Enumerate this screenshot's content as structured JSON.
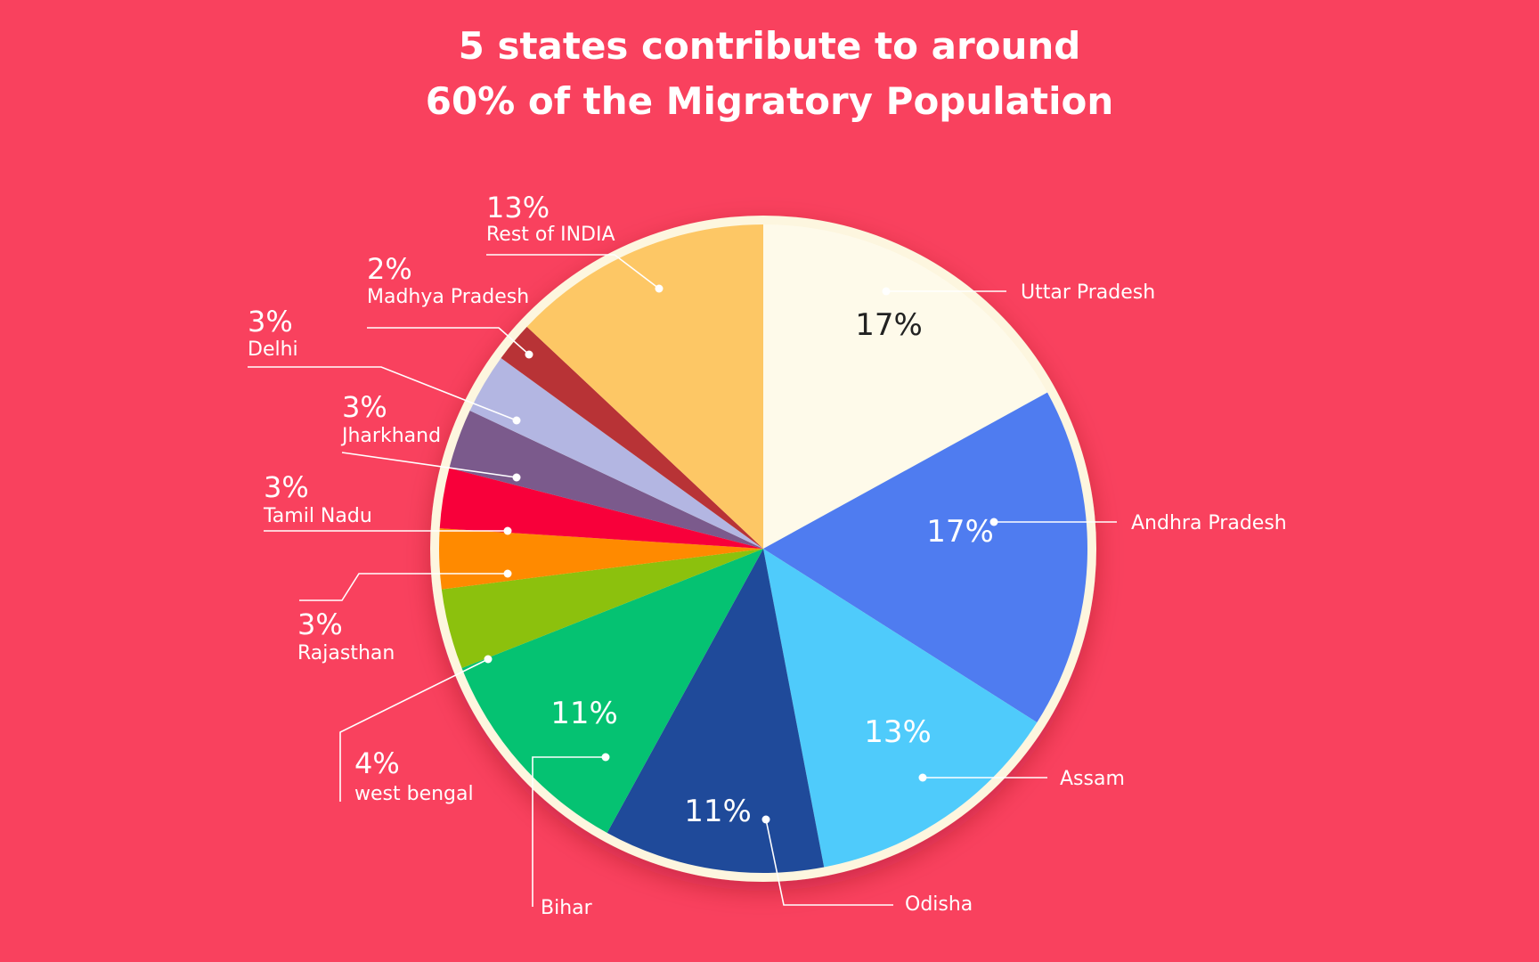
{
  "page": {
    "title_line1": "5 states contribute to around",
    "title_line2": "60% of the Migratory Population",
    "background": "#f9415e"
  },
  "chart_data": {
    "type": "pie",
    "start_angle_deg": 0,
    "direction": "clockwise",
    "slices": [
      {
        "name": "Uttar Pradesh",
        "value": 17,
        "label": "17%",
        "color": "#fefaea"
      },
      {
        "name": "Andhra Pradesh",
        "value": 17,
        "label": "17%",
        "color": "#4f7cf0"
      },
      {
        "name": "Assam",
        "value": 13,
        "label": "13%",
        "color": "#4fcbfb"
      },
      {
        "name": "Odisha",
        "value": 11,
        "label": "11%",
        "color": "#1f4a9a"
      },
      {
        "name": "Bihar",
        "value": 11,
        "label": "11%",
        "color": "#05c272"
      },
      {
        "name": "west bengal",
        "value": 4,
        "label": "4%",
        "color": "#8cc10d"
      },
      {
        "name": "Rajasthan",
        "value": 3,
        "label": "3%",
        "color": "#ff8a00"
      },
      {
        "name": "Tamil Nadu",
        "value": 3,
        "label": "3%",
        "color": "#f8003a"
      },
      {
        "name": "Jharkhand",
        "value": 3,
        "label": "3%",
        "color": "#7b5a8c"
      },
      {
        "name": "Delhi",
        "value": 3,
        "label": "3%",
        "color": "#b3b6e2"
      },
      {
        "name": "Madhya Pradesh",
        "value": 2,
        "label": "2%",
        "color": "#b83336"
      },
      {
        "name": "Rest of INDIA",
        "value": 13,
        "label": "13%",
        "color": "#fdc765"
      }
    ]
  }
}
